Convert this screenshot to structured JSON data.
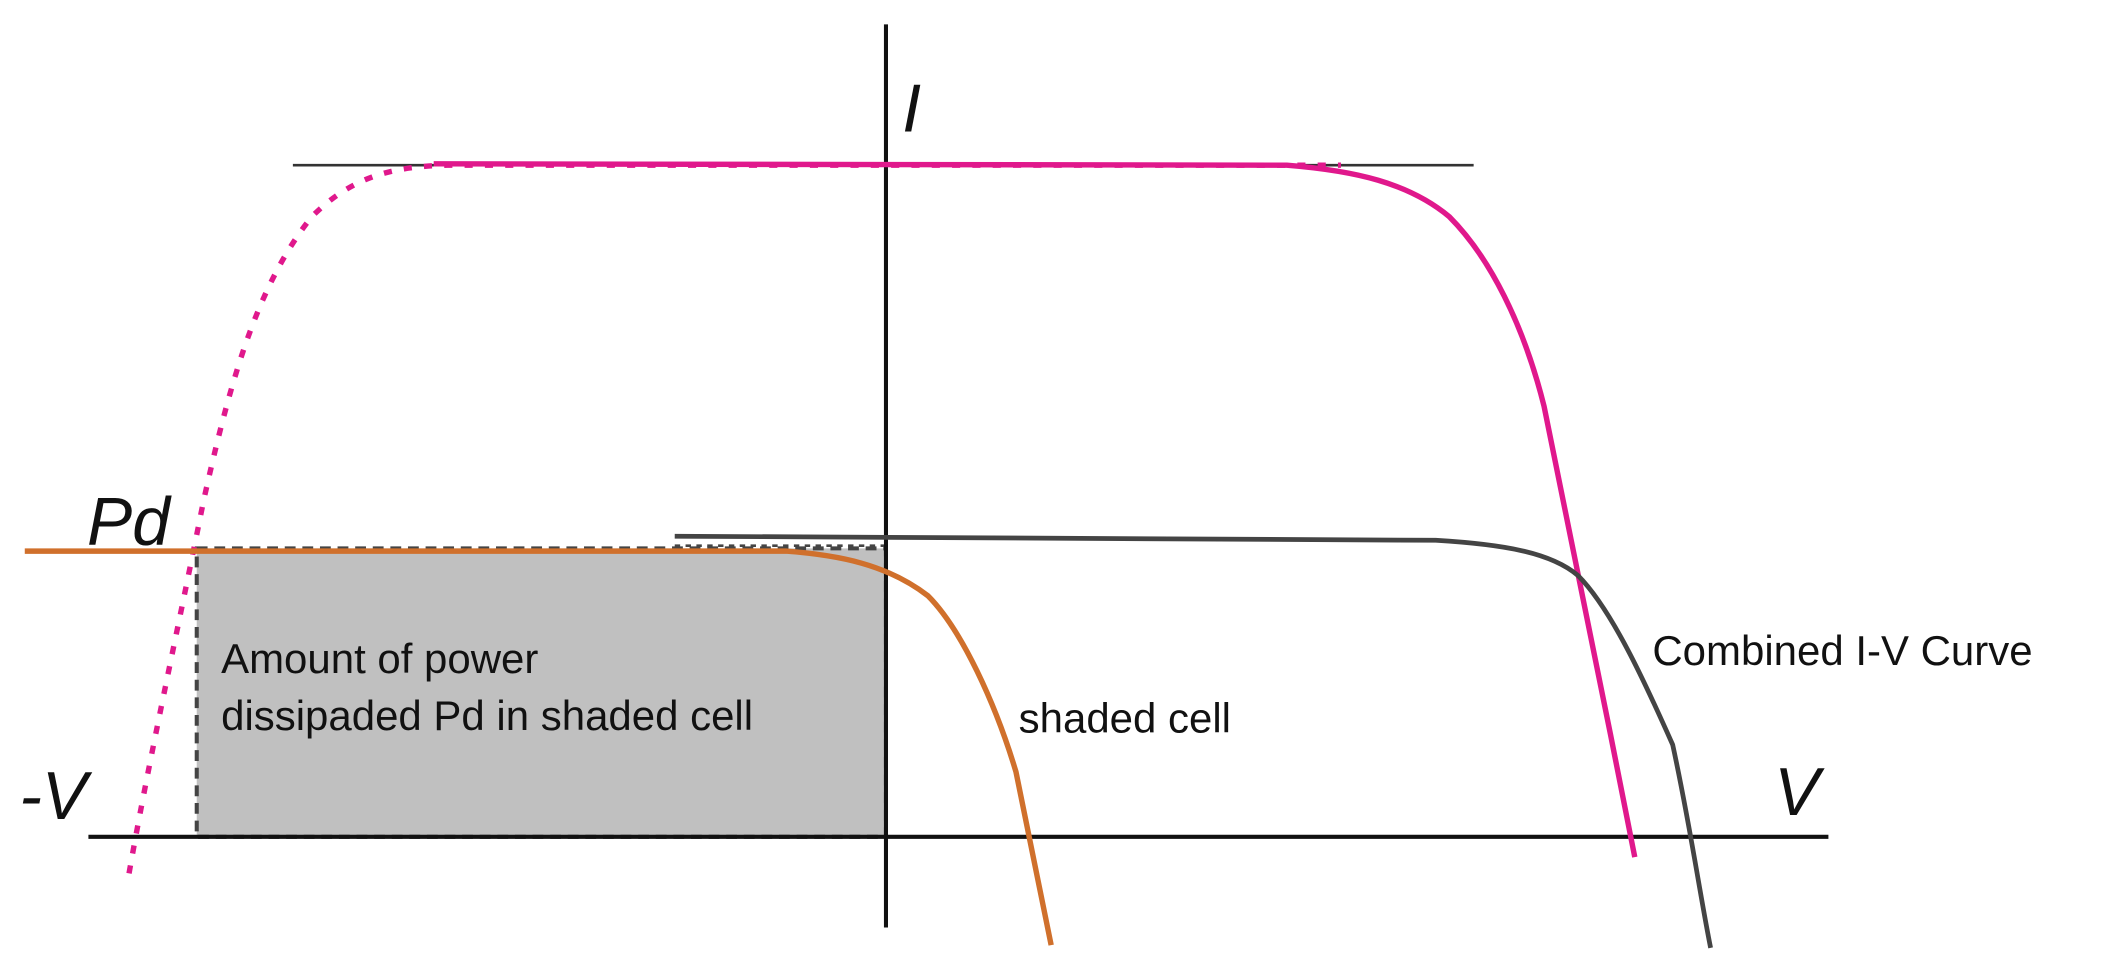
{
  "axes": {
    "current": "I",
    "voltage": "V",
    "negative_voltage": "-V"
  },
  "power_label": "Pd",
  "annotation": {
    "lines": [
      "Amount of power",
      "dissipaded Pd in shaded cell"
    ]
  },
  "curves": {
    "shaded": "shaded cell",
    "combined": "Combined I-V Curve"
  }
}
